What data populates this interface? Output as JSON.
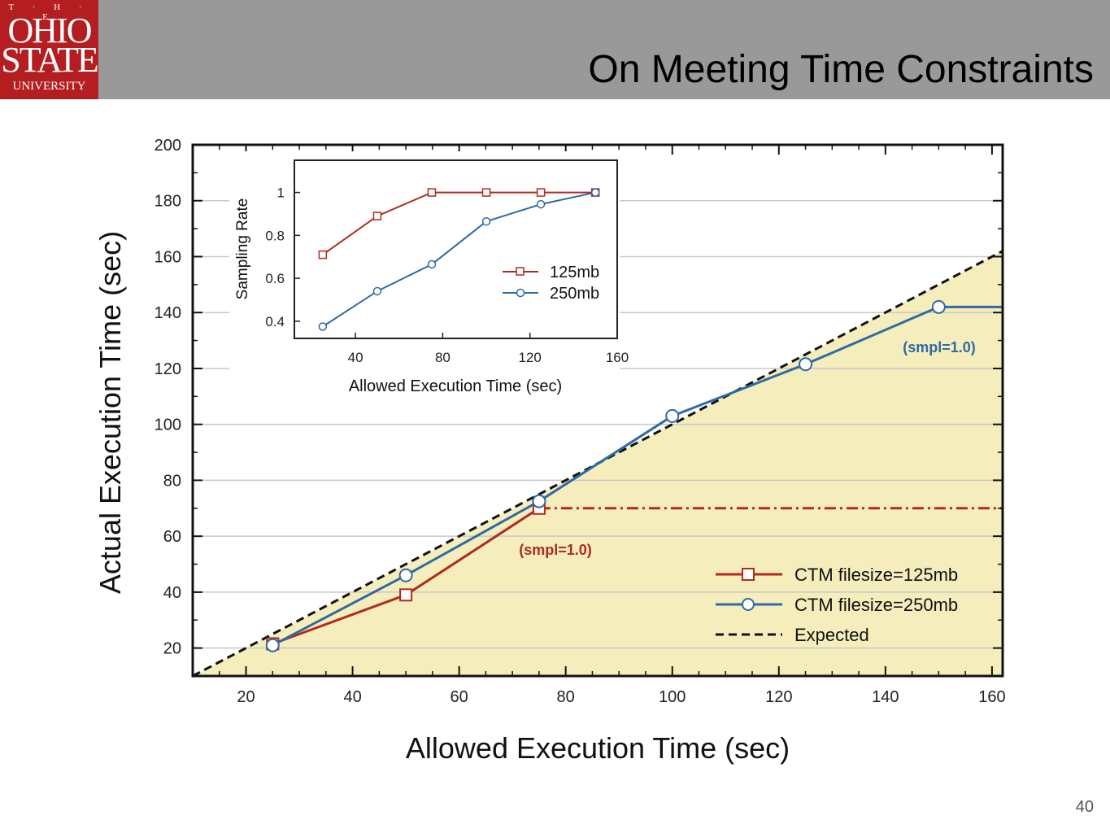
{
  "header": {
    "logo_lines": [
      "T · H · E",
      "OHIO",
      "STATE",
      "UNIVERSITY"
    ],
    "title": "On Meeting Time Constraints"
  },
  "footer": {
    "page_number": "40"
  },
  "colors": {
    "header_bg": "#999999",
    "logo_bg": "#b41e20",
    "fill": "#f5eebc",
    "red": "#b02a1e",
    "blue": "#2f6aa6"
  },
  "chart_data": [
    {
      "type": "line",
      "xlabel": "Allowed Execution Time (sec)",
      "ylabel": "Actual Execution Time (sec)",
      "xlim": [
        10,
        162
      ],
      "ylim": [
        10,
        200
      ],
      "xticks": [
        20,
        40,
        60,
        80,
        100,
        120,
        140,
        160
      ],
      "yticks": [
        20,
        40,
        60,
        80,
        100,
        120,
        140,
        160,
        180,
        200
      ],
      "grid": true,
      "legend_position": "bottom-right",
      "series": [
        {
          "name": "CTM filesize=125mb",
          "x": [
            25,
            50,
            75
          ],
          "y": [
            21.5,
            39,
            70
          ],
          "extension": {
            "style": "dash-dot",
            "y": 70,
            "x_from": 75,
            "x_to": 162
          }
        },
        {
          "name": "CTM filesize=250mb",
          "x": [
            25,
            50,
            75,
            100,
            125,
            150
          ],
          "y": [
            21,
            46,
            72.5,
            103,
            121.5,
            142
          ],
          "extension": {
            "style": "solid",
            "y": 142,
            "x_from": 150,
            "x_to": 162
          }
        },
        {
          "name": "Expected",
          "x": [
            10,
            162
          ],
          "y": [
            10,
            162
          ],
          "style": "dashed"
        }
      ],
      "annotations": [
        {
          "text": "(smpl=1.0)",
          "series": "CTM filesize=125mb",
          "near_x": 75
        },
        {
          "text": "(smpl=1.0)",
          "series": "CTM filesize=250mb",
          "near_x": 150
        }
      ]
    },
    {
      "type": "line",
      "inset": true,
      "xlabel": "Allowed Execution Time (sec)",
      "ylabel": "Sampling Rate",
      "xlim": [
        12,
        160
      ],
      "ylim": [
        0.32,
        1.15
      ],
      "xticks": [
        40,
        80,
        120,
        160
      ],
      "ytick_values": [
        0.4,
        0.6,
        0.8,
        1
      ],
      "ytick_labels": [
        "0.4",
        "0.6",
        "0.8",
        "1"
      ],
      "legend_position": "bottom-right",
      "series": [
        {
          "name": "125mb",
          "x": [
            25,
            50,
            75,
            100,
            125,
            150
          ],
          "y": [
            0.71,
            0.89,
            1.0,
            1.0,
            1.0,
            1.0
          ]
        },
        {
          "name": "250mb",
          "x": [
            25,
            50,
            75,
            100,
            125,
            150
          ],
          "y": [
            0.375,
            0.54,
            0.665,
            0.865,
            0.945,
            1.0
          ]
        }
      ]
    }
  ]
}
